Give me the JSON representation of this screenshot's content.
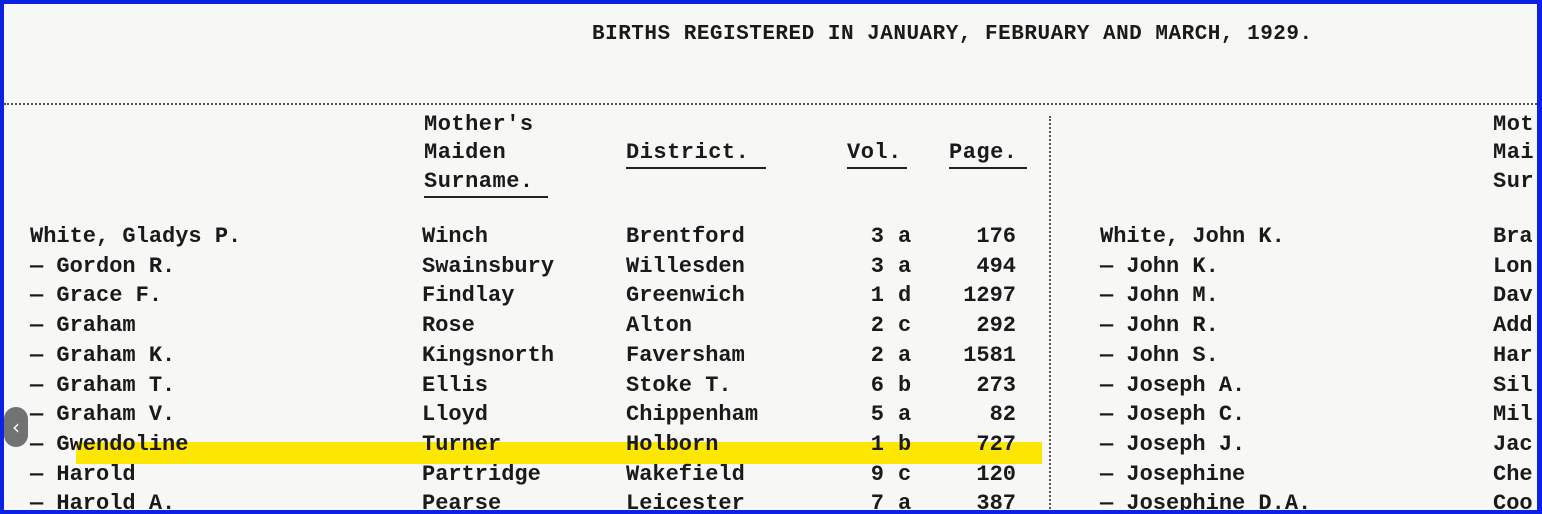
{
  "title": "BIRTHS REGISTERED IN JANUARY, FEBRUARY AND MARCH, 1929.",
  "headers": {
    "maiden": [
      "Mother's",
      "Maiden",
      "Surname."
    ],
    "district": "District.",
    "vol": "Vol.",
    "page": "Page.",
    "right_maiden": [
      "Mot",
      "Mai",
      "Sur"
    ]
  },
  "left_rows": [
    {
      "name": "White, Gladys P.",
      "maiden": "Winch",
      "district": "Brentford",
      "vol": "3",
      "sub": "a",
      "page": "176"
    },
    {
      "name": "— Gordon R.",
      "maiden": "Swainsbury",
      "district": "Willesden",
      "vol": "3",
      "sub": "a",
      "page": "494"
    },
    {
      "name": "— Grace F.",
      "maiden": "Findlay",
      "district": "Greenwich",
      "vol": "1",
      "sub": "d",
      "page": "1297"
    },
    {
      "name": "— Graham",
      "maiden": "Rose",
      "district": "Alton",
      "vol": "2",
      "sub": "c",
      "page": "292"
    },
    {
      "name": "— Graham K.",
      "maiden": "Kingsnorth",
      "district": "Faversham",
      "vol": "2",
      "sub": "a",
      "page": "1581"
    },
    {
      "name": "— Graham T.",
      "maiden": "Ellis",
      "district": "Stoke T.",
      "vol": "6",
      "sub": "b",
      "page": "273"
    },
    {
      "name": "— Graham V.",
      "maiden": "Lloyd",
      "district": "Chippenham",
      "vol": "5",
      "sub": "a",
      "page": "82"
    },
    {
      "name": "— Gwendoline",
      "maiden": "Turner",
      "district": "Holborn",
      "vol": "1",
      "sub": "b",
      "page": "727"
    },
    {
      "name": "— Harold",
      "maiden": "Partridge",
      "district": "Wakefield",
      "vol": "9",
      "sub": "c",
      "page": "120"
    },
    {
      "name": "— Harold A.",
      "maiden": "Pearse",
      "district": "Leicester",
      "vol": "7",
      "sub": "a",
      "page": "387"
    }
  ],
  "right_rows": [
    {
      "name": "White, John K.",
      "maiden": "Bra"
    },
    {
      "name": "— John K.",
      "maiden": "Lon"
    },
    {
      "name": "— John M.",
      "maiden": "Dav"
    },
    {
      "name": "— John R.",
      "maiden": "Add"
    },
    {
      "name": "— John S.",
      "maiden": "Har"
    },
    {
      "name": "— Joseph A.",
      "maiden": "Sil"
    },
    {
      "name": "— Joseph C.",
      "maiden": "Mil"
    },
    {
      "name": "— Joseph J.",
      "maiden": "Jac"
    },
    {
      "name": "— Josephine",
      "maiden": "Che"
    },
    {
      "name": "— Josephine D.A.",
      "maiden": "Coo"
    }
  ],
  "highlight_color": "#fde600",
  "frame_color": "#0b22e6",
  "nav": {
    "prev_icon": "chevron-left-icon",
    "prev_glyph": "‹"
  }
}
